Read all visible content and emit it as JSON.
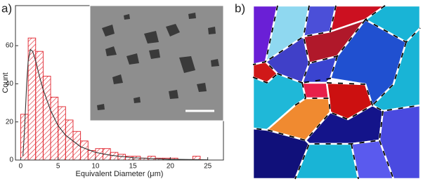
{
  "chart_data": {
    "type": "histogram",
    "panel_label": "a)",
    "bins": [
      0,
      1,
      2,
      3,
      4,
      5,
      6,
      7,
      8,
      9,
      10,
      11,
      12,
      13,
      14,
      15,
      16,
      17,
      18,
      19,
      20,
      21,
      22,
      23,
      24
    ],
    "values": [
      24,
      64,
      57,
      44,
      33,
      28,
      21,
      15,
      10,
      5,
      6,
      6,
      4,
      3,
      2,
      2,
      1,
      2,
      1,
      1,
      1,
      0,
      0,
      2
    ],
    "color": "#e0202a",
    "fit": {
      "color": "#333333",
      "x": [
        0.3,
        0.5,
        0.8,
        1,
        1.3,
        1.6,
        2,
        2.5,
        3,
        4,
        5,
        6,
        8,
        10,
        12,
        15,
        20,
        25
      ],
      "values": [
        2,
        15,
        40,
        52,
        58,
        57,
        52,
        44,
        37,
        26,
        18,
        13,
        7,
        4,
        2.5,
        1.2,
        0.4,
        0.1
      ]
    },
    "xlabel": "Equivalent Diameter (μm)",
    "ylabel": "Count",
    "xlim": [
      -0.7,
      27.1
    ],
    "ylim": [
      0,
      81
    ],
    "xticks": [
      0,
      5,
      10,
      15,
      20,
      25
    ],
    "yticks": [
      0,
      20,
      40,
      60
    ]
  },
  "panel_b": {
    "label": "b)"
  }
}
